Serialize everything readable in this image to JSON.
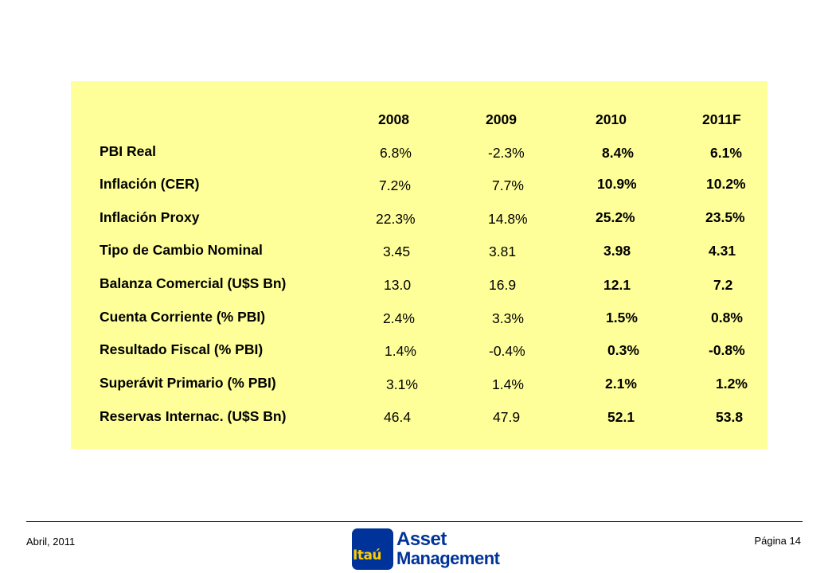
{
  "table": {
    "headers": [
      "2008",
      "2009",
      "2010",
      "2011F"
    ],
    "rows": [
      {
        "label": "PBI Real",
        "values": [
          "6.8%",
          "-2.3%",
          "8.4%",
          "6.1%"
        ]
      },
      {
        "label": "Inflación  (CER)",
        "values": [
          "7.2%",
          "7.7%",
          "10.9%",
          "10.2%"
        ]
      },
      {
        "label": "Inflación Proxy",
        "values": [
          "22.3%",
          "14.8%",
          "25.2%",
          "23.5%"
        ]
      },
      {
        "label": "Tipo de Cambio Nominal",
        "values": [
          "3.45",
          "3.81",
          "3.98",
          "4.31"
        ]
      },
      {
        "label": "Balanza Comercial (U$S Bn)",
        "values": [
          "13.0",
          "16.9",
          "12.1",
          "7.2"
        ]
      },
      {
        "label": "Cuenta Corriente (% PBI)",
        "values": [
          "2.4%",
          "3.3%",
          "1.5%",
          "0.8%"
        ]
      },
      {
        "label": "Resultado Fiscal (% PBI)",
        "values": [
          "1.4%",
          "-0.4%",
          "0.3%",
          "-0.8%"
        ]
      },
      {
        "label": "Superávit Primario (% PBI)",
        "values": [
          "3.1%",
          "1.4%",
          "2.1%",
          "1.2%"
        ]
      },
      {
        "label": "Reservas Internac. (U$S Bn)",
        "values": [
          "46.4",
          "47.9",
          "52.1",
          "53.8"
        ]
      }
    ],
    "background_color": "#ffff99"
  },
  "footer": {
    "date": "Abril, 2011",
    "page": "Página 14",
    "logo": {
      "brand": "Itaú",
      "line1": "Asset",
      "line2": "Management",
      "box_color": "#003399",
      "brand_color": "#ffcc00"
    }
  }
}
